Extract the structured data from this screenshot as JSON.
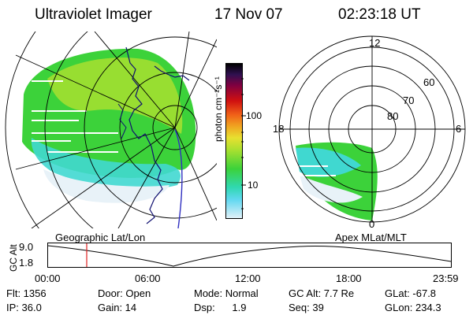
{
  "header": {
    "title": "Ultraviolet Imager",
    "date": "17 Nov 07",
    "time": "02:23:18 UT"
  },
  "left_panel": {
    "label": "Geographic Lat/Lon"
  },
  "right_panel": {
    "label": "Apex MLat/MLT",
    "mlt_labels": [
      "12",
      "18",
      "6",
      "0"
    ],
    "lat_labels": [
      "60",
      "70",
      "80"
    ]
  },
  "colorbar": {
    "unit_label": "photon cm⁻²s⁻¹",
    "ticks": [
      "100",
      "10"
    ]
  },
  "timeline": {
    "ylabel": "GC Alt",
    "y_ticks": [
      "9.0",
      "1.8"
    ],
    "x_ticks": [
      "00:00",
      "06:00",
      "12:00",
      "18:00",
      "23:59"
    ]
  },
  "footer": {
    "row1": [
      "Flt: 1356",
      "Door: Open",
      "Mode: Normal",
      "GC Alt: 7.7 Re",
      "GLat: -67.8"
    ],
    "row2": [
      "IP: 36.0",
      "Gain: 14",
      "Dsp:      1.9",
      "Seq: 39",
      "GLon: 234.3"
    ]
  },
  "colors": {
    "aurora_low": "#e8f2f8",
    "aurora_cyan": "#40d8d0",
    "aurora_green": "#3cd23a",
    "aurora_yellowgreen": "#a8e030",
    "coastline": "#101070",
    "marker": "#e02020"
  }
}
